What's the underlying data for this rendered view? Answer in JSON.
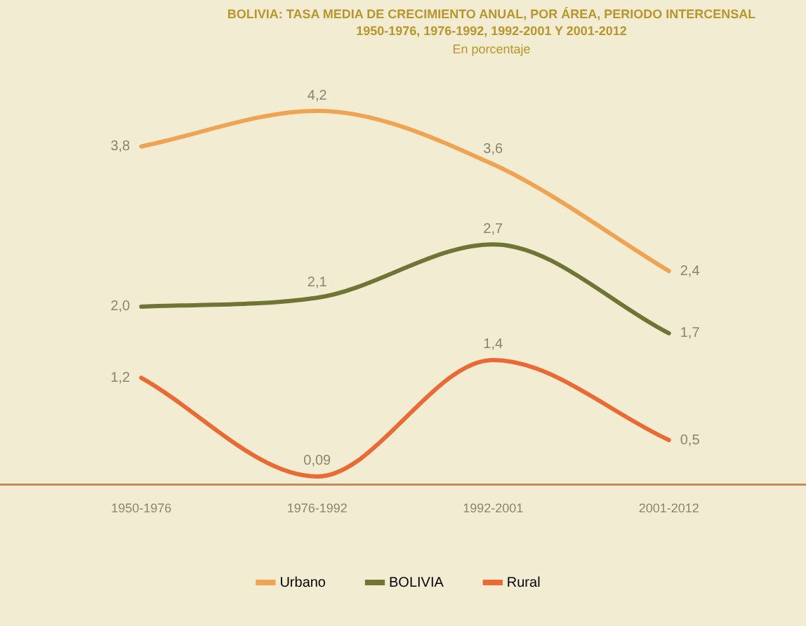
{
  "chart_data": {
    "type": "line",
    "title": "BOLIVIA: TASA MEDIA DE CRECIMIENTO ANUAL, POR ÁREA, PERIODO INTERCENSAL 1950-1976, 1976-1992, 1992-2001 Y 2001-2012",
    "subtitle": "En porcentaje",
    "categories": [
      "1950-1976",
      "1976-1992",
      "1992-2001",
      "2001-2012"
    ],
    "series": [
      {
        "name": "Urbano",
        "color": "#f0a352",
        "values": [
          3.8,
          4.2,
          3.6,
          2.4
        ],
        "value_labels": [
          "3,8",
          "4,2",
          "3,6",
          "2,4"
        ]
      },
      {
        "name": "BOLIVIA",
        "color": "#6e7535",
        "values": [
          2.0,
          2.1,
          2.7,
          1.7
        ],
        "value_labels": [
          "2,0",
          "2,1",
          "2,7",
          "1,7"
        ]
      },
      {
        "name": "Rural",
        "color": "#ea6a35",
        "values": [
          1.2,
          0.09,
          1.4,
          0.5
        ],
        "value_labels": [
          "1,2",
          "0,09",
          "1,4",
          "0,5"
        ]
      }
    ],
    "tick_labels": "x",
    "grid": false,
    "legend": "bottom",
    "marker": "none",
    "line_style": "solid"
  }
}
